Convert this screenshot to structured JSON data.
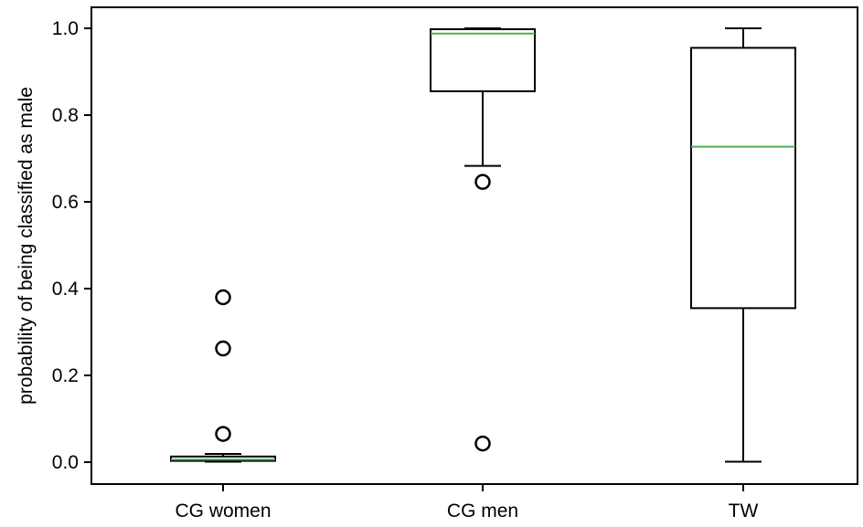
{
  "chart_data": {
    "type": "box",
    "title": "",
    "xlabel": "",
    "ylabel": "probability of being classified as male",
    "ylim": [
      -0.05,
      1.05
    ],
    "yticks": [
      0.0,
      0.2,
      0.4,
      0.6,
      0.8,
      1.0
    ],
    "ytick_labels": [
      "0.0",
      "0.2",
      "0.4",
      "0.6",
      "0.8",
      "1.0"
    ],
    "grid": false,
    "legend": "none",
    "categories": [
      "CG women",
      "CG men",
      "TW"
    ],
    "boxes": [
      {
        "category": "CG women",
        "whisker_low": 0.001,
        "q1": 0.003,
        "median": 0.006,
        "q3": 0.013,
        "whisker_high": 0.019,
        "outliers": [
          0.38,
          0.262,
          0.065
        ]
      },
      {
        "category": "CG men",
        "whisker_low": 0.683,
        "q1": 0.855,
        "median": 0.988,
        "q3": 0.998,
        "whisker_high": 1.0,
        "outliers": [
          0.646,
          0.043
        ]
      },
      {
        "category": "TW",
        "whisker_low": 0.001,
        "q1": 0.355,
        "median": 0.727,
        "q3": 0.955,
        "whisker_high": 1.0,
        "outliers": []
      }
    ],
    "colors": {
      "box": "#000000",
      "median": "#4caf50",
      "outlier": "#000000"
    }
  }
}
